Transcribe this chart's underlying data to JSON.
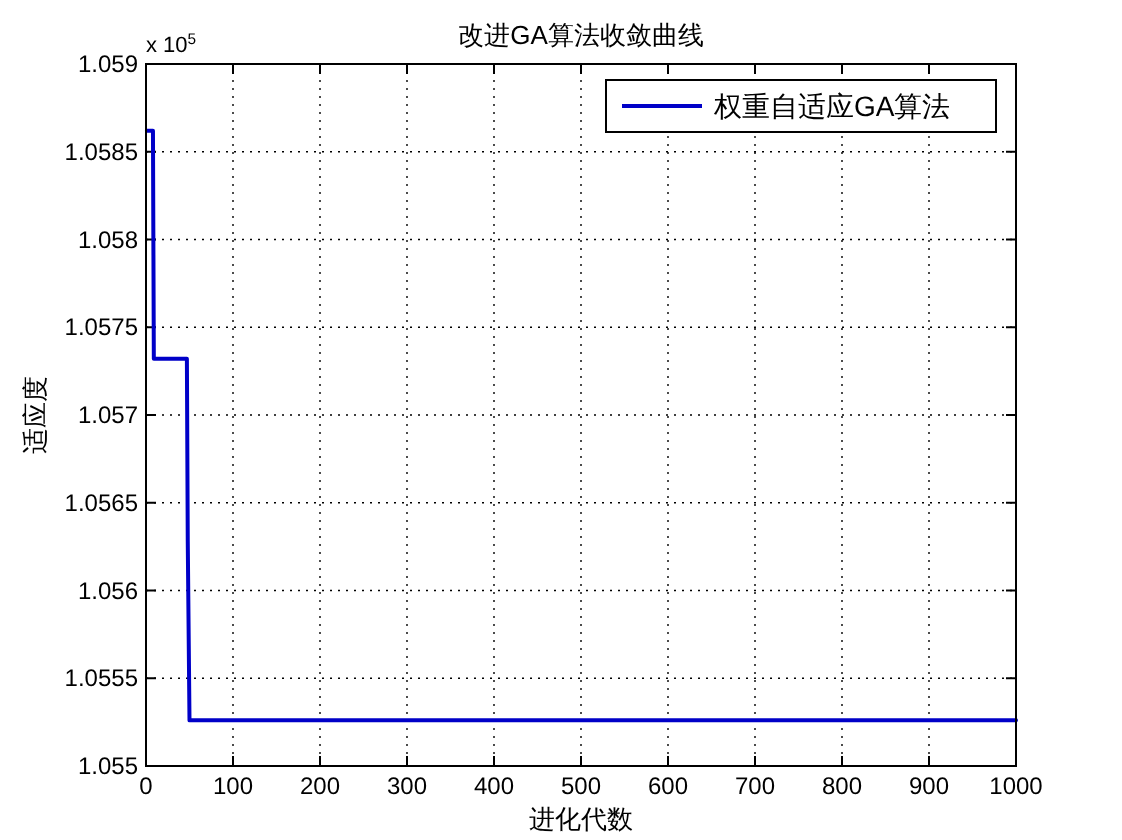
{
  "chart_data": {
    "type": "line",
    "title": "改进GA算法收敛曲线",
    "xlabel": "进化代数",
    "ylabel": "适应度",
    "annotations": [
      "x 10$^{5}$"
    ],
    "series": [
      {
        "name": "权重自适应GA算法",
        "color": "#0000c8",
        "x": [
          1,
          8,
          9,
          47,
          48,
          50,
          1000
        ],
        "values": [
          1.05862,
          1.05862,
          1.05732,
          1.05732,
          1.05628,
          1.05526,
          1.05526
        ]
      }
    ],
    "xlim": [
      0,
      1000
    ],
    "xticks": [
      0,
      100,
      200,
      300,
      400,
      500,
      600,
      700,
      800,
      900,
      1000
    ],
    "ylim": [
      1.055,
      1.059
    ],
    "yticks": [
      1.055,
      1.0555,
      1.056,
      1.0565,
      1.057,
      1.0575,
      1.058,
      1.0585,
      1.059
    ],
    "grid": true,
    "legend": "top right",
    "line_style": "solid",
    "marker": "none"
  }
}
